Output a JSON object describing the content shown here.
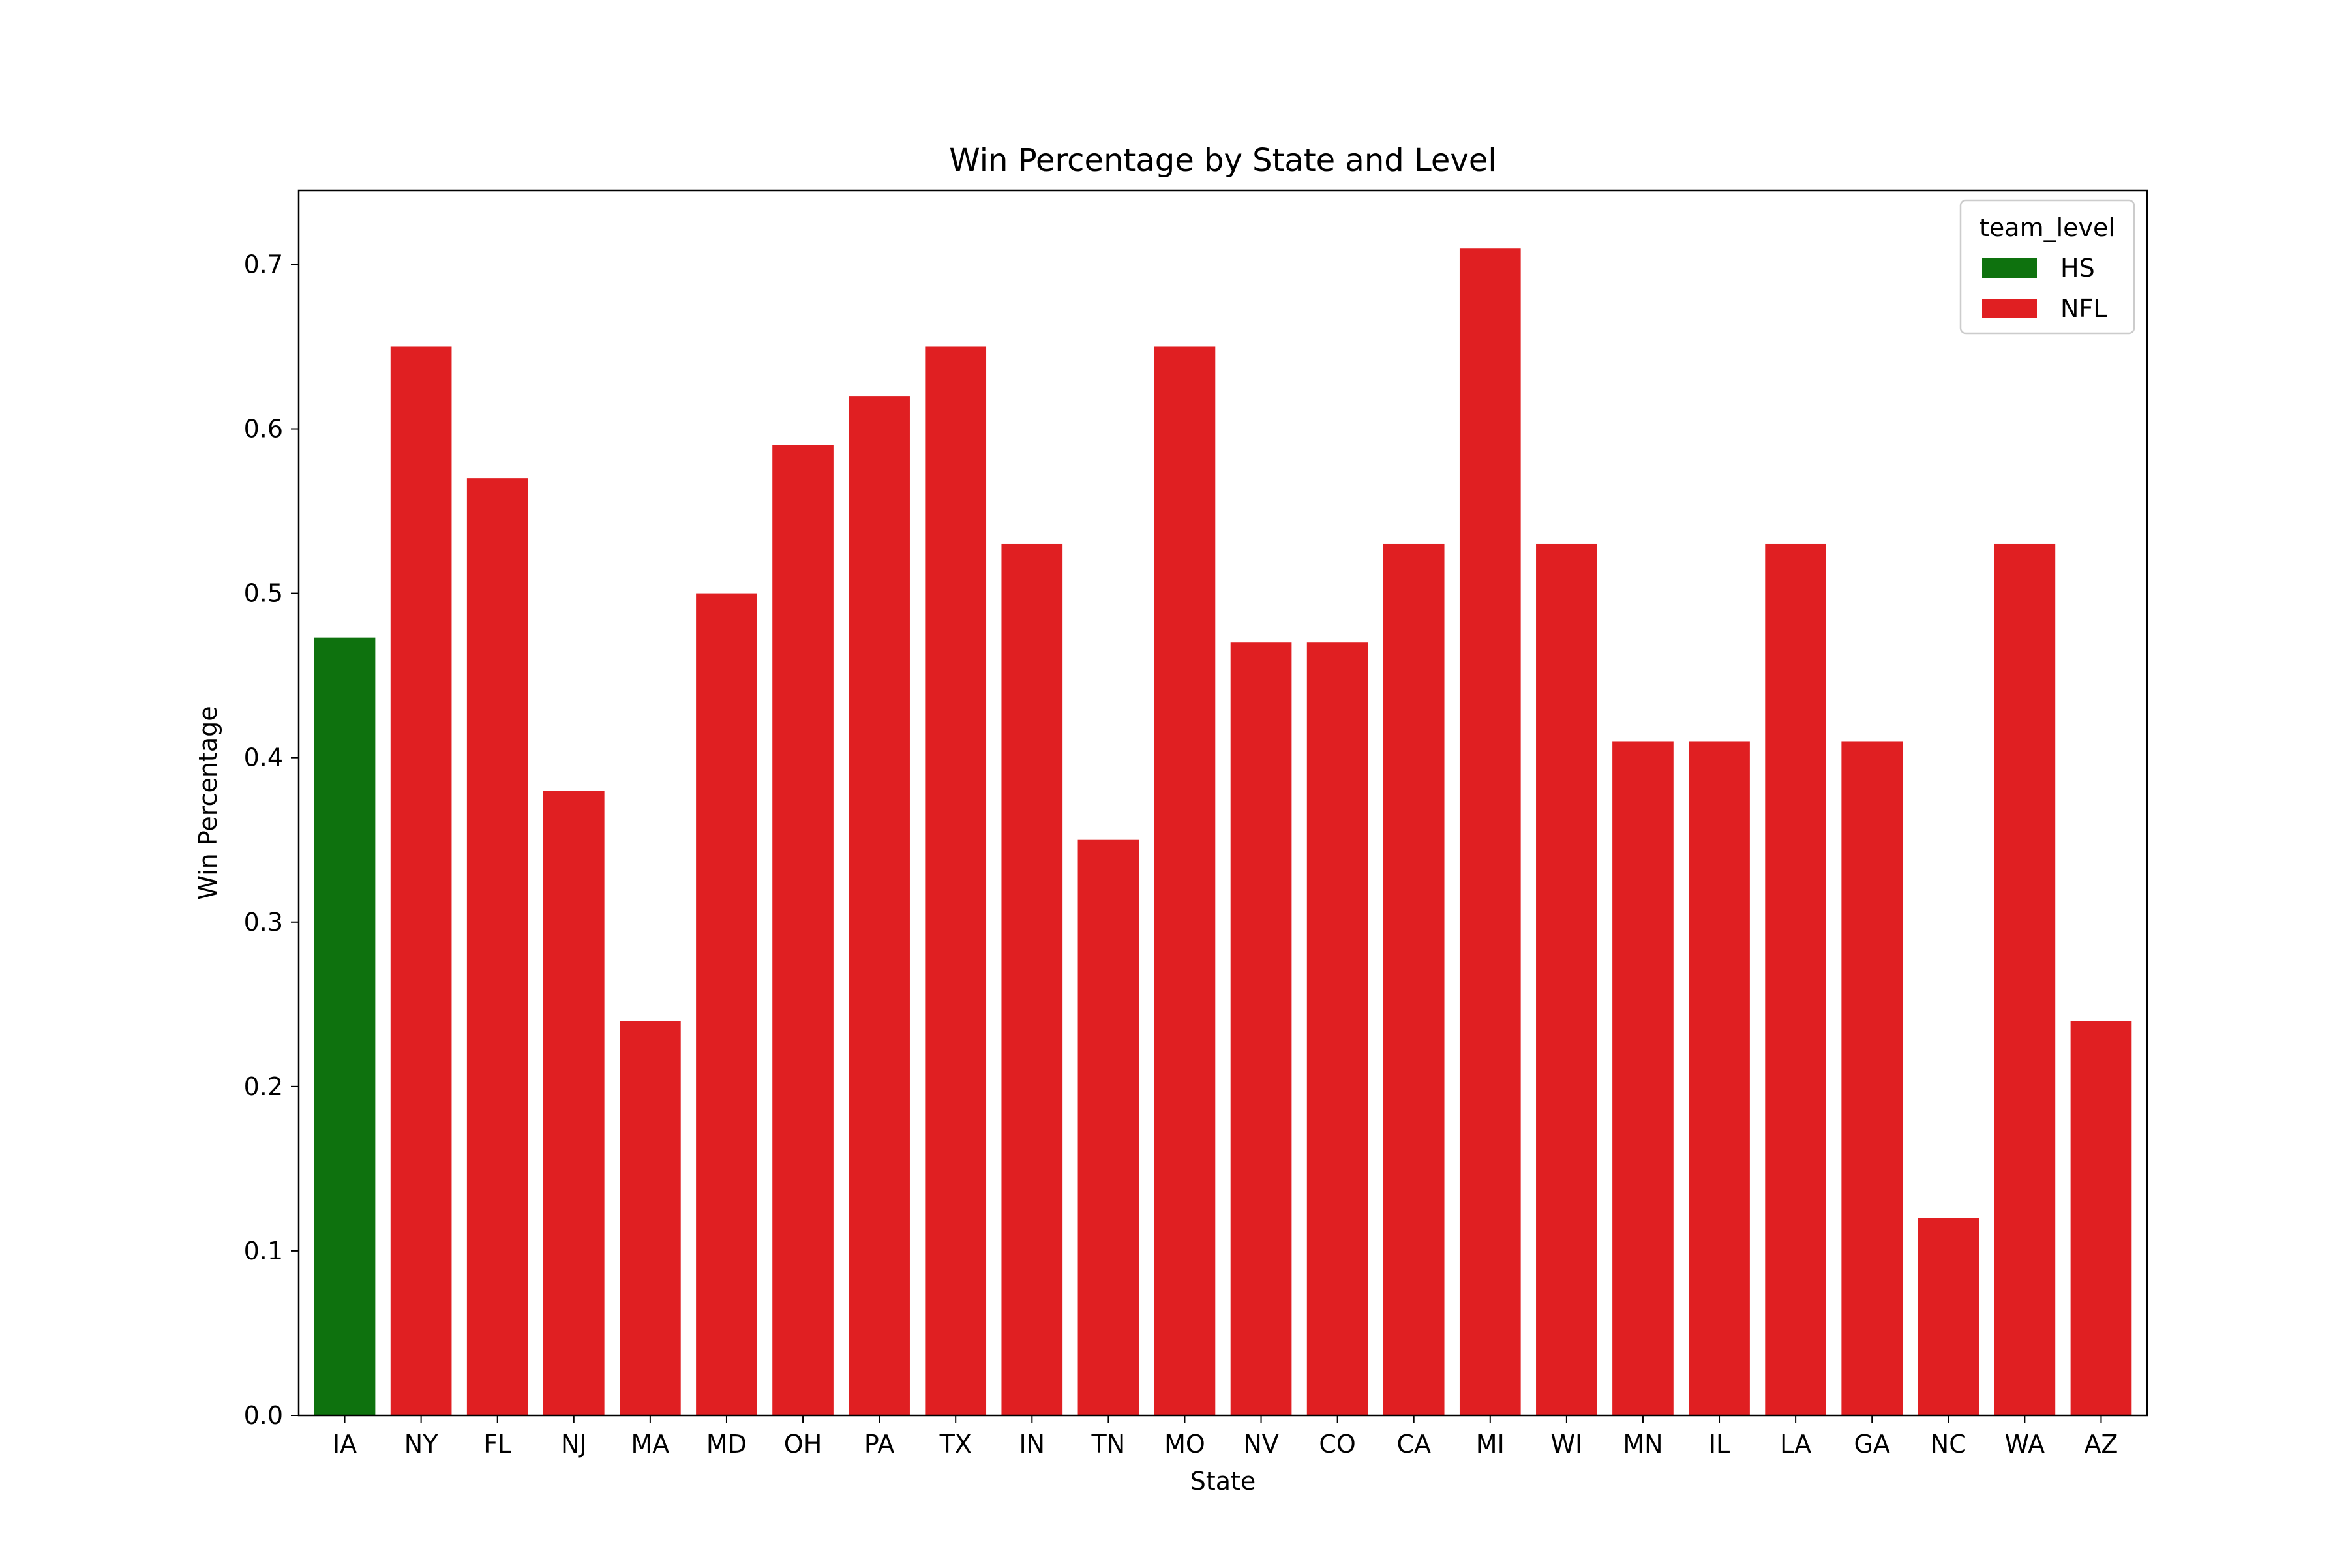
{
  "chart_data": {
    "type": "bar",
    "title": "Win Percentage by State and Level",
    "xlabel": "State",
    "ylabel": "Win Percentage",
    "ylim": [
      0,
      0.745
    ],
    "yticks": [
      0.0,
      0.1,
      0.2,
      0.3,
      0.4,
      0.5,
      0.6,
      0.7
    ],
    "ytick_labels": [
      "0.0",
      "0.1",
      "0.2",
      "0.3",
      "0.4",
      "0.5",
      "0.6",
      "0.7"
    ],
    "grid": false,
    "legend": {
      "title": "team_level",
      "position": "top-right",
      "entries": [
        {
          "name": "HS",
          "color": "#0e720e"
        },
        {
          "name": "NFL",
          "color": "#e01f22"
        }
      ]
    },
    "categories": [
      "IA",
      "NY",
      "FL",
      "NJ",
      "MA",
      "MD",
      "OH",
      "PA",
      "TX",
      "IN",
      "TN",
      "MO",
      "NV",
      "CO",
      "CA",
      "MI",
      "WI",
      "MN",
      "IL",
      "LA",
      "GA",
      "NC",
      "WA",
      "AZ"
    ],
    "values": [
      0.473,
      0.65,
      0.57,
      0.38,
      0.24,
      0.5,
      0.59,
      0.62,
      0.65,
      0.53,
      0.35,
      0.65,
      0.47,
      0.47,
      0.53,
      0.71,
      0.53,
      0.41,
      0.41,
      0.53,
      0.41,
      0.12,
      0.53,
      0.24
    ],
    "levels": [
      "HS",
      "NFL",
      "NFL",
      "NFL",
      "NFL",
      "NFL",
      "NFL",
      "NFL",
      "NFL",
      "NFL",
      "NFL",
      "NFL",
      "NFL",
      "NFL",
      "NFL",
      "NFL",
      "NFL",
      "NFL",
      "NFL",
      "NFL",
      "NFL",
      "NFL",
      "NFL",
      "NFL"
    ]
  }
}
